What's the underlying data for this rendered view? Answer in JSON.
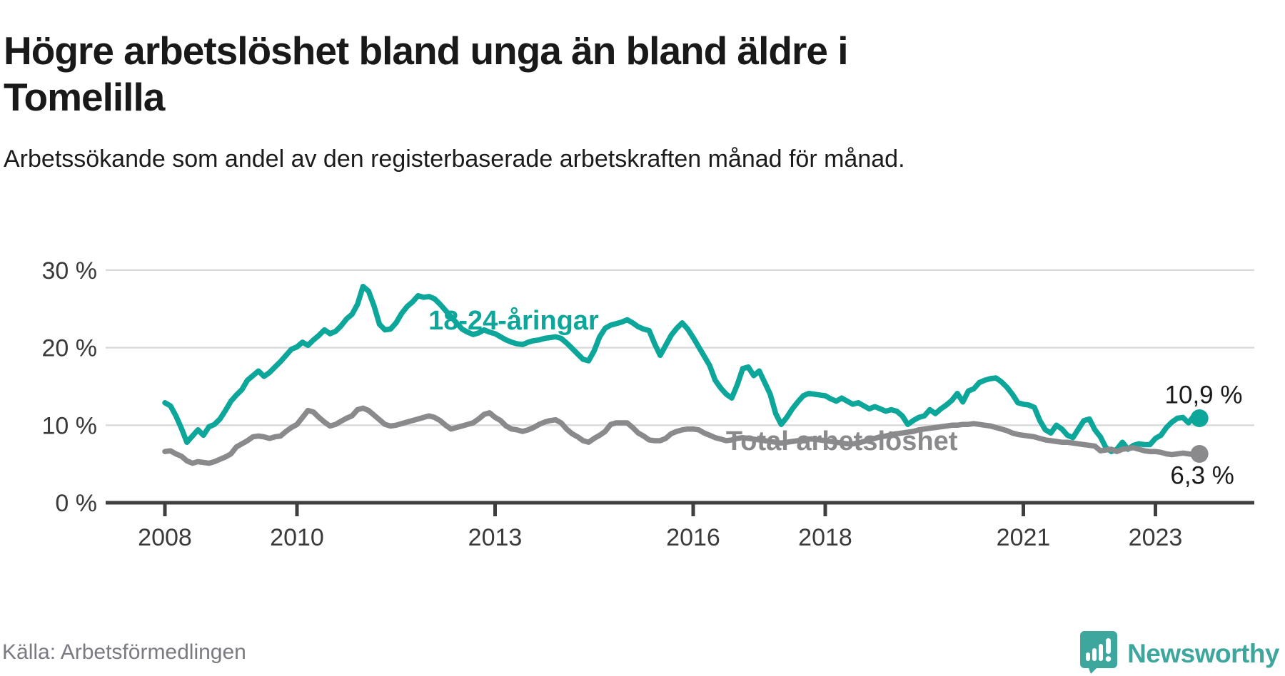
{
  "header": {
    "title": "Högre arbetslöshet bland unga än bland äldre i Tomelilla",
    "subtitle": "Arbetssökande som andel av den registerbaserade arbetskraften månad för månad."
  },
  "chart_data": {
    "type": "line",
    "title": "Högre arbetslöshet bland unga än bland äldre i Tomelilla",
    "x_start_year": 2008,
    "x_step_months": 1,
    "x_end": "2023-09",
    "ylim": [
      0,
      31
    ],
    "grid": true,
    "grid_color": "#d9d9d9",
    "axis_color": "#3f3f3f",
    "tick_label_color": "#3a3a3a",
    "y_ticks": [
      {
        "value": 30,
        "label": "30 %"
      },
      {
        "value": 20,
        "label": "20 %"
      },
      {
        "value": 10,
        "label": "10 %"
      },
      {
        "value": 0,
        "label": "0 %"
      }
    ],
    "x_ticks": [
      {
        "year": 2008,
        "label": "2008"
      },
      {
        "year": 2010,
        "label": "2010"
      },
      {
        "year": 2013,
        "label": "2013"
      },
      {
        "year": 2016,
        "label": "2016"
      },
      {
        "year": 2018,
        "label": "2018"
      },
      {
        "year": 2021,
        "label": "2021"
      },
      {
        "year": 2023,
        "label": "2023"
      }
    ],
    "series": [
      {
        "name": "18-24-åringar",
        "color": "#0da69a",
        "inline_label": {
          "text": "18-24-åringar",
          "t": 2013.28,
          "v": 22.35
        },
        "end_label": {
          "text": "10,9 %",
          "t": 2023.73,
          "v": 12.85,
          "color": "#1a1a1a"
        },
        "end_value": 10.9,
        "values": [
          12.9,
          12.5,
          11.2,
          9.6,
          7.8,
          8.6,
          9.4,
          8.7,
          9.8,
          10.1,
          10.8,
          11.9,
          13.1,
          13.9,
          14.6,
          15.8,
          16.4,
          17.0,
          16.3,
          16.8,
          17.5,
          18.2,
          19.0,
          19.8,
          20.1,
          20.7,
          20.3,
          21.0,
          21.6,
          22.3,
          21.8,
          22.1,
          22.8,
          23.7,
          24.3,
          25.6,
          27.9,
          27.3,
          25.4,
          23.0,
          22.3,
          22.4,
          23.2,
          24.4,
          25.3,
          25.9,
          26.7,
          26.5,
          26.6,
          26.3,
          25.6,
          24.8,
          24.0,
          23.2,
          22.4,
          22.0,
          21.7,
          21.9,
          22.3,
          22.0,
          21.8,
          21.4,
          21.0,
          20.7,
          20.5,
          20.4,
          20.7,
          20.9,
          21.0,
          21.2,
          21.3,
          21.4,
          21.2,
          20.6,
          19.9,
          19.2,
          18.5,
          18.3,
          19.6,
          21.4,
          22.5,
          22.9,
          23.1,
          23.3,
          23.6,
          23.2,
          22.7,
          22.4,
          22.2,
          20.5,
          19.0,
          20.3,
          21.6,
          22.5,
          23.2,
          22.4,
          21.3,
          20.1,
          18.9,
          17.7,
          15.8,
          14.8,
          14.0,
          13.5,
          15.2,
          17.3,
          17.5,
          16.4,
          17.0,
          15.5,
          14.0,
          11.5,
          10.1,
          11.0,
          12.1,
          13.0,
          13.8,
          14.1,
          14.0,
          13.9,
          13.8,
          13.4,
          13.1,
          13.5,
          13.1,
          12.7,
          12.9,
          12.5,
          12.1,
          12.4,
          12.1,
          11.8,
          12.0,
          11.8,
          11.2,
          10.1,
          10.6,
          11.0,
          11.2,
          12.0,
          11.5,
          12.1,
          12.6,
          13.2,
          14.1,
          13.0,
          14.4,
          14.7,
          15.5,
          15.8,
          16.0,
          16.1,
          15.6,
          14.9,
          14.0,
          12.9,
          12.7,
          12.6,
          12.3,
          10.6,
          9.4,
          9.0,
          10.0,
          9.5,
          8.7,
          8.4,
          9.5,
          10.6,
          10.8,
          9.4,
          8.5,
          7.1,
          6.6,
          6.9,
          7.8,
          6.9,
          7.4,
          7.6,
          7.5,
          7.5,
          8.3,
          8.7,
          9.7,
          10.4,
          10.9,
          11.0,
          10.3,
          11.2,
          10.9
        ]
      },
      {
        "name": "Total arbetslöshet",
        "color": "#8a8a8c",
        "inline_label": {
          "text": "Total arbetslöshet",
          "t": 2018.25,
          "v": 6.8
        },
        "end_label": {
          "text": "6,3 %",
          "t": 2023.71,
          "v": 2.45,
          "color": "#1a1a1a"
        },
        "end_value": 6.3,
        "values": [
          6.6,
          6.7,
          6.3,
          6.0,
          5.4,
          5.1,
          5.3,
          5.2,
          5.1,
          5.3,
          5.6,
          5.9,
          6.3,
          7.2,
          7.6,
          8.0,
          8.5,
          8.6,
          8.5,
          8.3,
          8.5,
          8.6,
          9.2,
          9.7,
          10.1,
          11.0,
          11.9,
          11.7,
          11.0,
          10.4,
          9.9,
          10.1,
          10.5,
          10.9,
          11.2,
          12.0,
          12.2,
          11.9,
          11.3,
          10.7,
          10.1,
          9.9,
          10.0,
          10.2,
          10.4,
          10.6,
          10.8,
          11.0,
          11.2,
          11.0,
          10.6,
          10.0,
          9.5,
          9.7,
          9.9,
          10.1,
          10.3,
          10.8,
          11.4,
          11.6,
          11.0,
          10.6,
          9.9,
          9.5,
          9.4,
          9.2,
          9.4,
          9.7,
          10.1,
          10.4,
          10.6,
          10.7,
          10.3,
          9.5,
          8.9,
          8.5,
          8.0,
          7.8,
          8.3,
          8.7,
          9.2,
          10.1,
          10.3,
          10.3,
          10.3,
          9.7,
          9.0,
          8.6,
          8.1,
          8.0,
          8.0,
          8.3,
          8.9,
          9.2,
          9.4,
          9.5,
          9.5,
          9.4,
          9.0,
          8.7,
          8.4,
          8.2,
          8.0,
          8.1,
          8.3,
          8.4,
          8.3,
          8.2,
          8.1,
          8.0,
          7.9,
          7.8,
          7.7,
          7.8,
          7.9,
          8.0,
          8.1,
          8.2,
          8.2,
          8.1,
          8.0,
          7.9,
          7.8,
          7.7,
          7.6,
          7.6,
          7.7,
          7.9,
          8.1,
          8.3,
          8.5,
          8.6,
          8.8,
          8.9,
          9.0,
          9.1,
          9.2,
          9.4,
          9.5,
          9.6,
          9.7,
          9.8,
          9.9,
          10.0,
          10.0,
          10.1,
          10.1,
          10.2,
          10.1,
          10.0,
          9.9,
          9.7,
          9.5,
          9.3,
          9.0,
          8.8,
          8.7,
          8.6,
          8.5,
          8.3,
          8.1,
          8.0,
          7.9,
          7.8,
          7.8,
          7.7,
          7.6,
          7.5,
          7.4,
          7.3,
          6.7,
          6.8,
          6.9,
          6.6,
          6.9,
          7.0,
          7.1,
          6.9,
          6.7,
          6.6,
          6.6,
          6.5,
          6.3,
          6.2,
          6.3,
          6.4,
          6.3,
          6.2,
          6.3
        ]
      }
    ]
  },
  "footer": {
    "source": "Källa: Arbetsförmedlingen",
    "brand": "Newsworthy",
    "brand_color": "#3ea79d"
  }
}
